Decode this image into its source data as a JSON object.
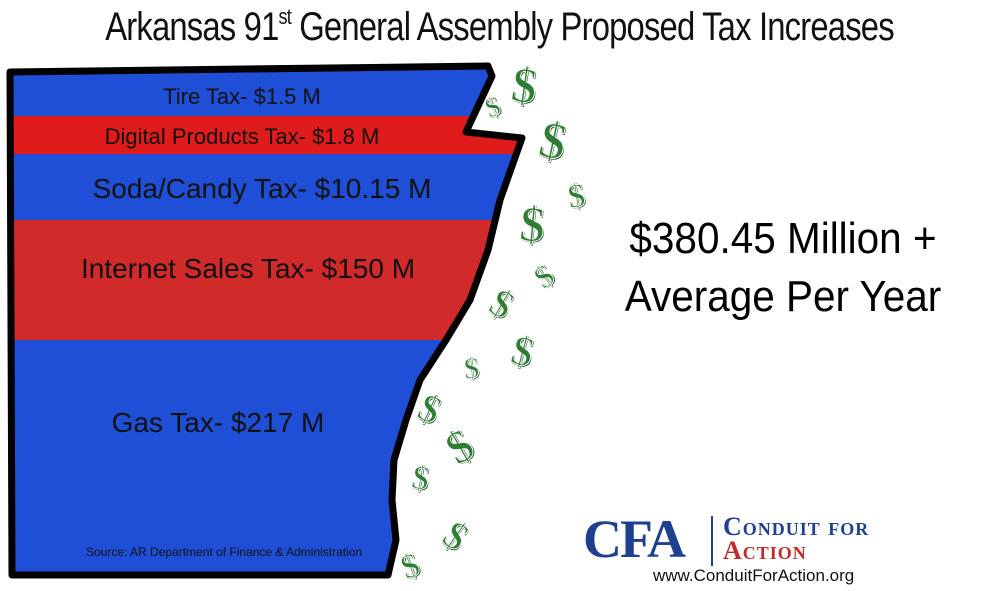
{
  "title": {
    "prefix": "Arkansas 91",
    "superscript": "st",
    "suffix": " General Assembly Proposed Tax Increases"
  },
  "bands": [
    {
      "label": "Tire Tax- $1.5 M",
      "color": "#1f4fd6"
    },
    {
      "label": "Digital Products Tax- $1.8 M",
      "color": "#e01b1b"
    },
    {
      "label": "Soda/Candy Tax- $10.15 M",
      "color": "#1f4fd6"
    },
    {
      "label": "Internet Sales Tax- $150 M",
      "color": "#d12a2a"
    },
    {
      "label": "Gas Tax- $217 M",
      "color": "#1f4fd6"
    }
  ],
  "source": "Source: AR Department of Finance & Administration",
  "total": {
    "line1": "$380.45 Million +",
    "line2": "Average Per Year"
  },
  "dollar_symbol": "$",
  "logo": {
    "abbr": "CFA",
    "line1": "Conduit for",
    "line2": "Action",
    "url": "www.ConduitForAction.org"
  },
  "colors": {
    "blue": "#1f4fd6",
    "red": "#d12a2a",
    "dollar_green": "#2e7d32"
  }
}
